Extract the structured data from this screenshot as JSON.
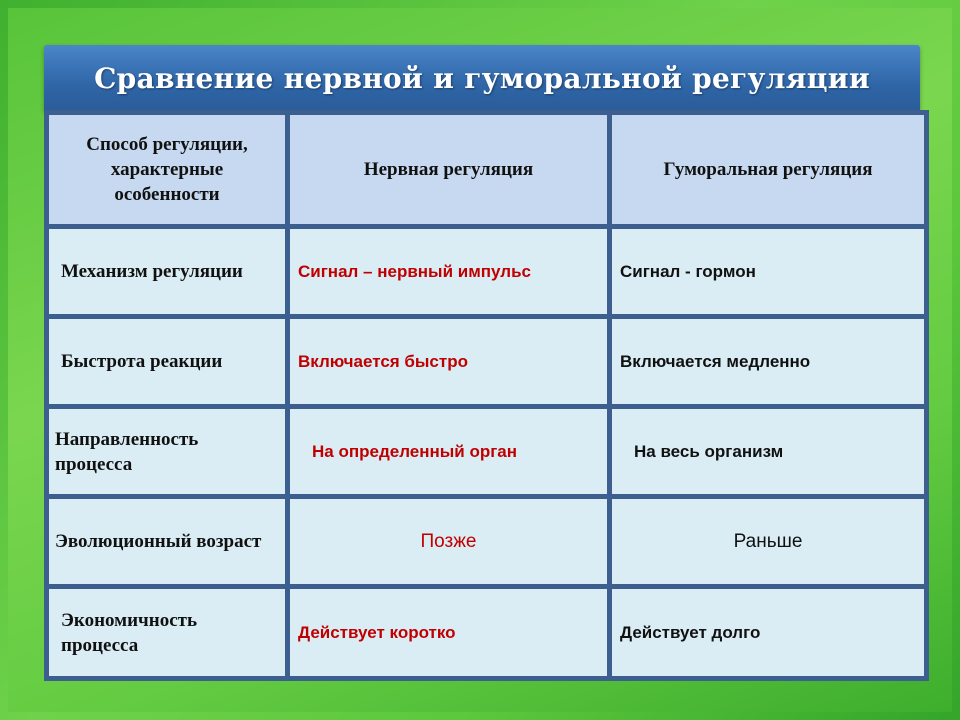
{
  "title": "Сравнение нервной и гуморальной регуляции",
  "colors": {
    "header_bar": "#2f66a8",
    "border": "#3d5f8f",
    "header_cell": "#c6d9f0",
    "body_cell": "#dbedf4",
    "nervous_text": "#c00000",
    "background": "#5cc83c"
  },
  "table": {
    "headers": [
      "Способ регуляции, характерные особенности",
      "Нервная регуляция",
      "Гуморальная регуляция"
    ],
    "rows": [
      {
        "feature": "Механизм регуляции",
        "nervous": "Сигнал – нервный импульс",
        "humoral": "Сигнал - гормон"
      },
      {
        "feature": "Быстрота реакции",
        "nervous": "Включается быстро",
        "humoral": "Включается медленно"
      },
      {
        "feature": "Направленность процесса",
        "nervous": "На  определенный орган",
        "humoral": "На весь организм"
      },
      {
        "feature": "Эволюционный возраст",
        "nervous": "Позже",
        "humoral": "Раньше"
      },
      {
        "feature": "Экономичность процесса",
        "nervous": "Действует коротко",
        "humoral": "Действует долго"
      }
    ]
  }
}
